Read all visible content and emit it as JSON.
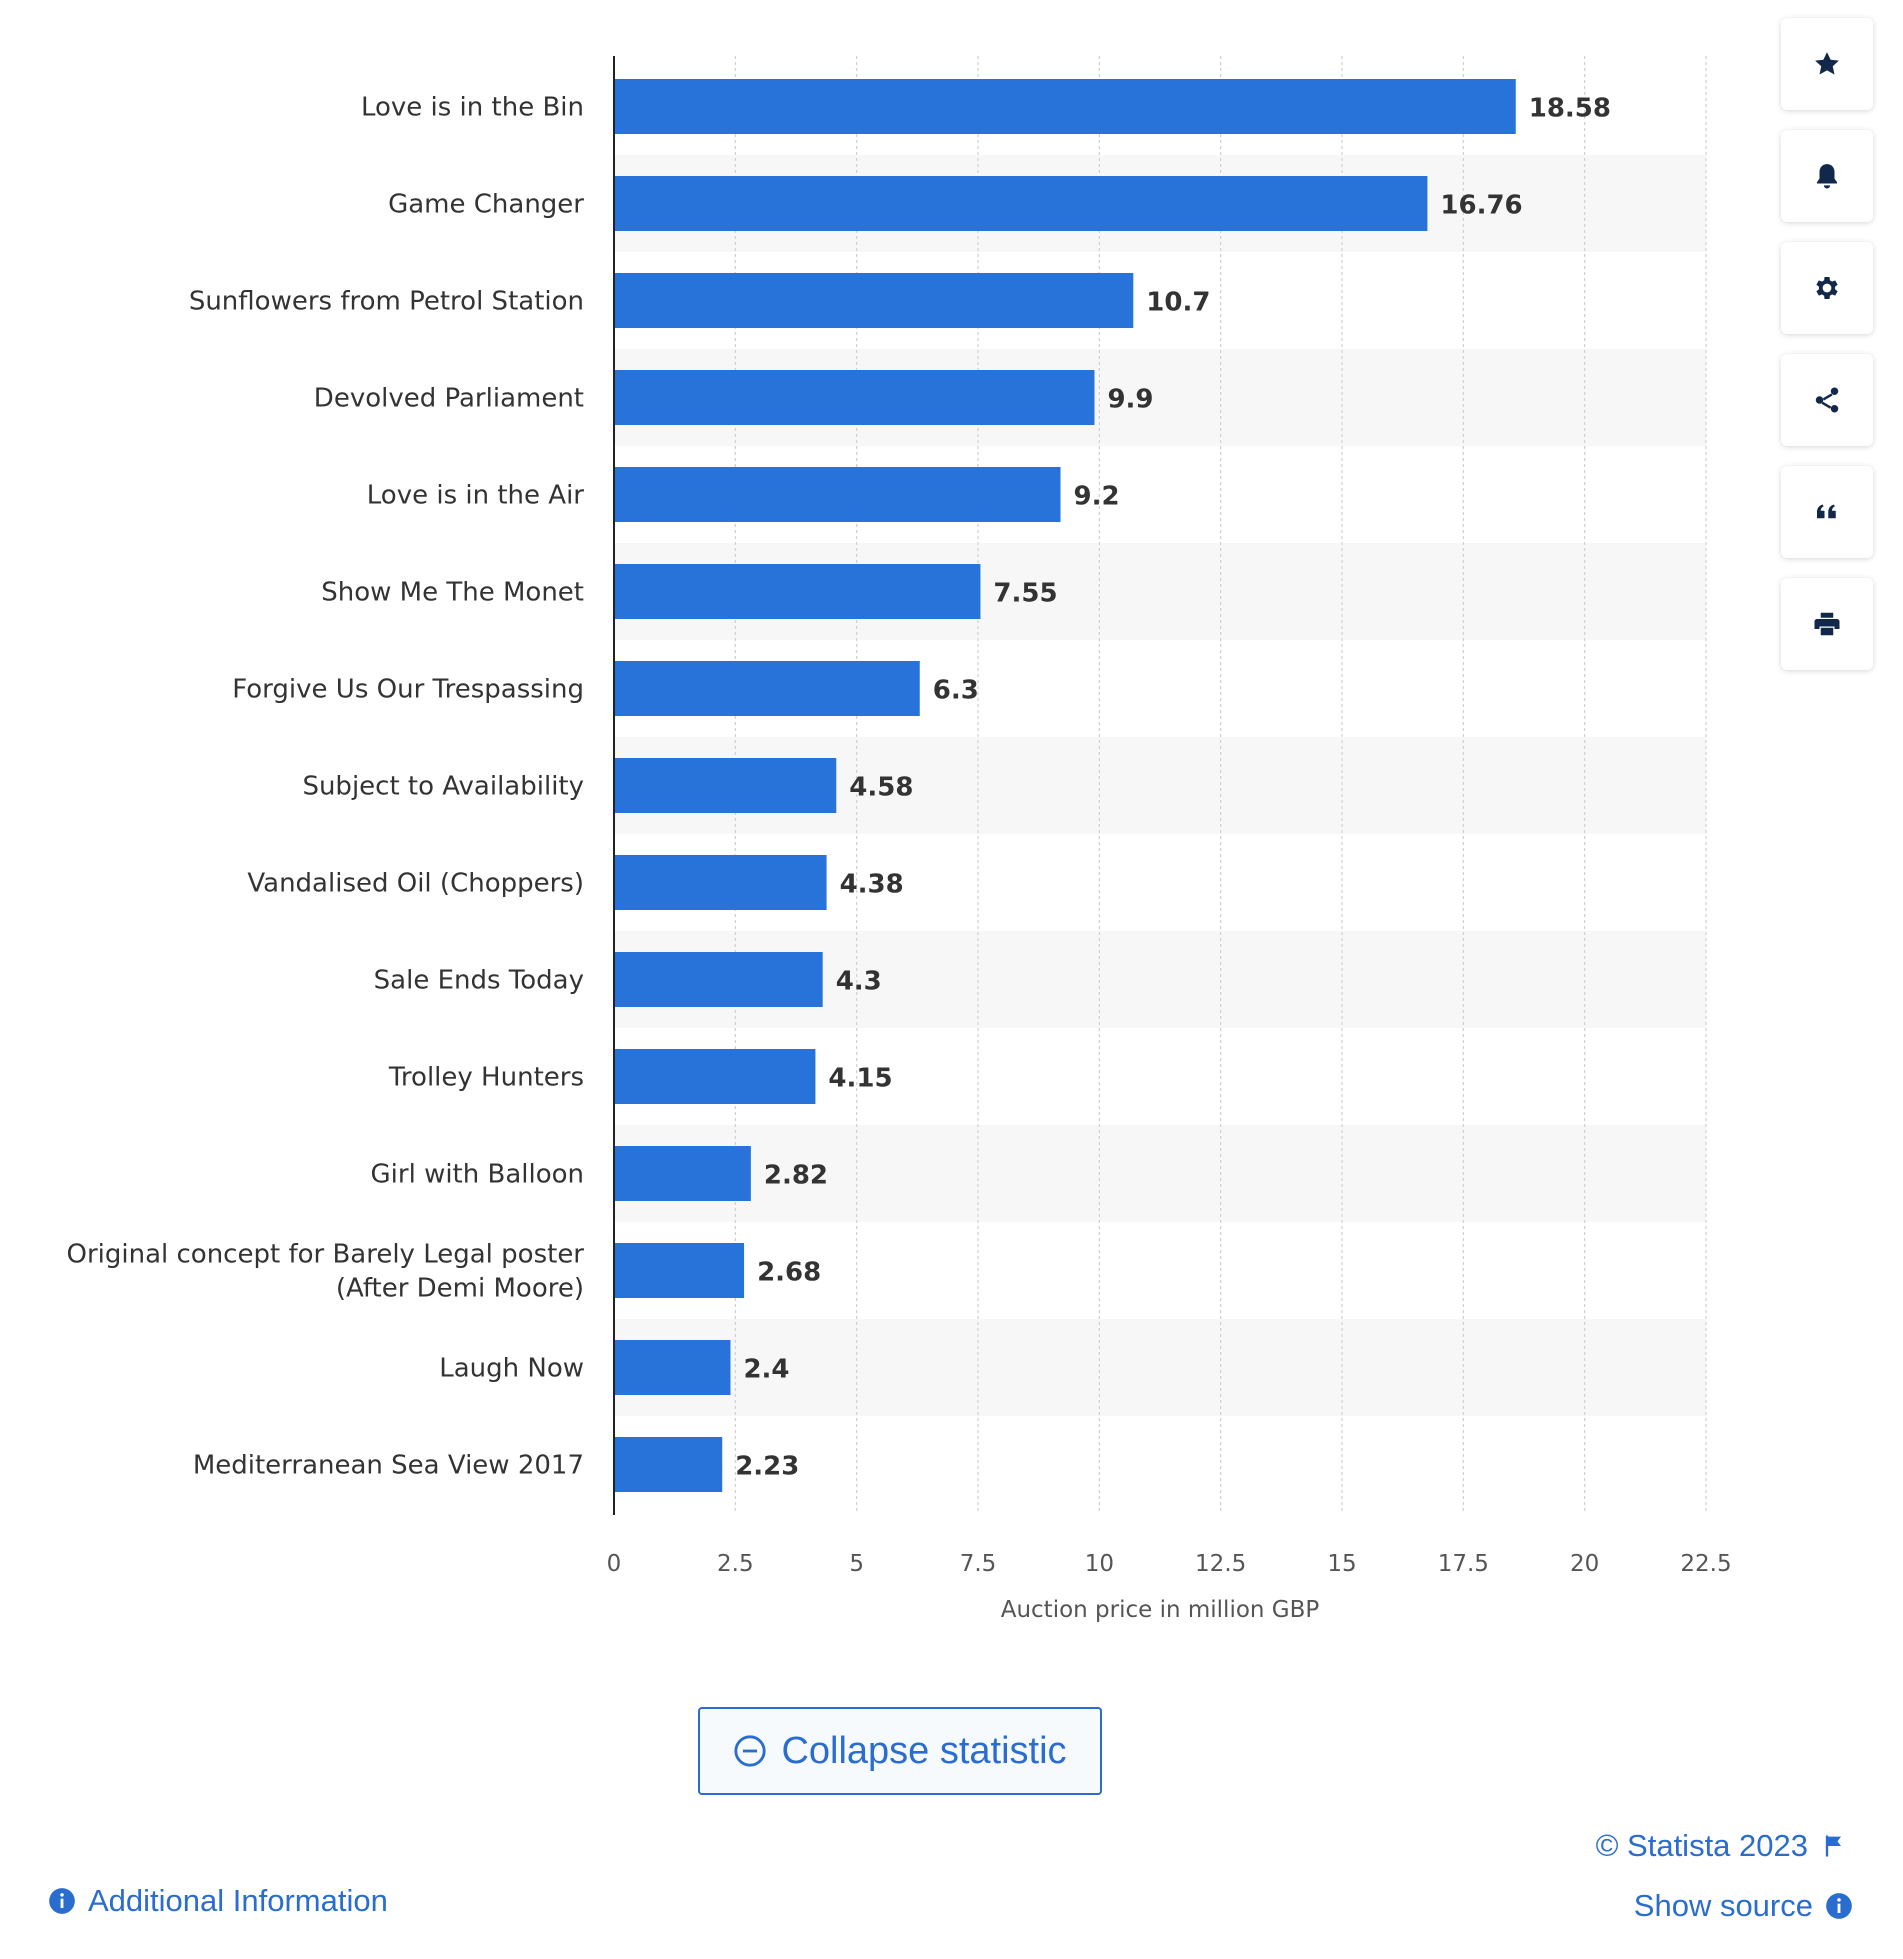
{
  "chart_data": {
    "type": "bar",
    "orientation": "horizontal",
    "categories": [
      "Love is in the Bin",
      "Game Changer",
      "Sunflowers from Petrol Station",
      "Devolved Parliament",
      "Love is in the Air",
      "Show Me The Monet",
      "Forgive Us Our Trespassing",
      "Subject to Availability",
      "Vandalised Oil (Choppers)",
      "Sale Ends Today",
      "Trolley Hunters",
      "Girl with Balloon",
      [
        "Original concept for Barely Legal poster",
        "(After Demi Moore)"
      ],
      "Laugh Now",
      "Mediterranean Sea View 2017"
    ],
    "values": [
      18.58,
      16.76,
      10.7,
      9.9,
      9.2,
      7.55,
      6.3,
      4.58,
      4.38,
      4.3,
      4.15,
      2.82,
      2.68,
      2.4,
      2.23
    ],
    "value_labels": [
      "18.58",
      "16.76",
      "10.7",
      "9.9",
      "9.2",
      "7.55",
      "6.3",
      "4.58",
      "4.38",
      "4.3",
      "4.15",
      "2.82",
      "2.68",
      "2.4",
      "2.23"
    ],
    "xlabel": "Auction price in million GBP",
    "xlim": [
      0,
      22.5
    ],
    "ticks": [
      0,
      2.5,
      5,
      7.5,
      10,
      12.5,
      15,
      17.5,
      20,
      22.5
    ],
    "tick_labels": [
      "0",
      "2.5",
      "5",
      "7.5",
      "10",
      "12.5",
      "15",
      "17.5",
      "20",
      "22.5"
    ],
    "grid": true,
    "bar_color": "#2773d9"
  },
  "toolbar": {
    "items": [
      "star-icon",
      "bell-icon",
      "gear-icon",
      "share-icon",
      "quote-icon",
      "print-icon"
    ]
  },
  "actions": {
    "collapse_label": "Collapse statistic"
  },
  "footer": {
    "copyright": "© Statista 2023",
    "show_source": "Show source",
    "additional_info": "Additional Information"
  }
}
